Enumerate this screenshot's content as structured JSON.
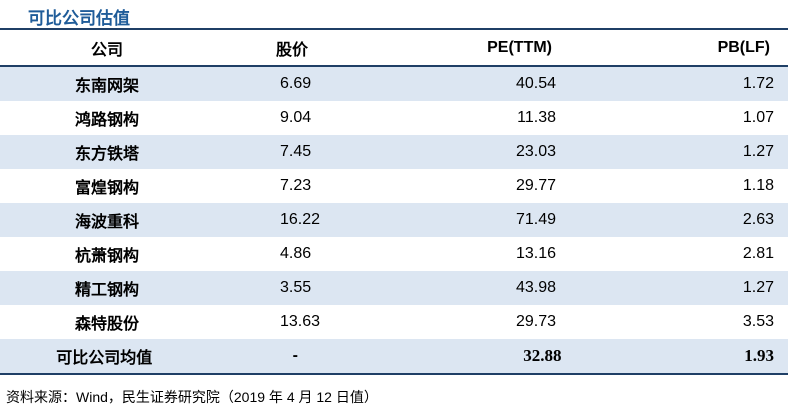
{
  "title": "可比公司估值",
  "table": {
    "headers": {
      "company": "公司",
      "price": "股价",
      "pe": "PE(TTM)",
      "pb": "PB(LF)"
    },
    "rows": [
      {
        "company": "东南网架",
        "price": "6.69",
        "pe": "40.54",
        "pb": "1.72"
      },
      {
        "company": "鸿路钢构",
        "price": "9.04",
        "pe": "11.38",
        "pb": "1.07"
      },
      {
        "company": "东方铁塔",
        "price": "7.45",
        "pe": "23.03",
        "pb": "1.27"
      },
      {
        "company": "富煌钢构",
        "price": "7.23",
        "pe": "29.77",
        "pb": "1.18"
      },
      {
        "company": "海波重科",
        "price": "16.22",
        "pe": "71.49",
        "pb": "2.63"
      },
      {
        "company": "杭萧钢构",
        "price": "4.86",
        "pe": "13.16",
        "pb": "2.81"
      },
      {
        "company": "精工钢构",
        "price": "3.55",
        "pe": "43.98",
        "pb": "1.27"
      },
      {
        "company": "森特股份",
        "price": "13.63",
        "pe": "29.73",
        "pb": "3.53"
      }
    ],
    "average": {
      "company": "可比公司均值",
      "price": "-",
      "pe": "32.88",
      "pb": "1.93"
    }
  },
  "source": "资料来源：Wind，民生证券研究院（2019 年 4 月 12 日值）",
  "colors": {
    "title": "#1f5c99",
    "shade": "#dce6f2",
    "rule": "#1f3f66"
  }
}
